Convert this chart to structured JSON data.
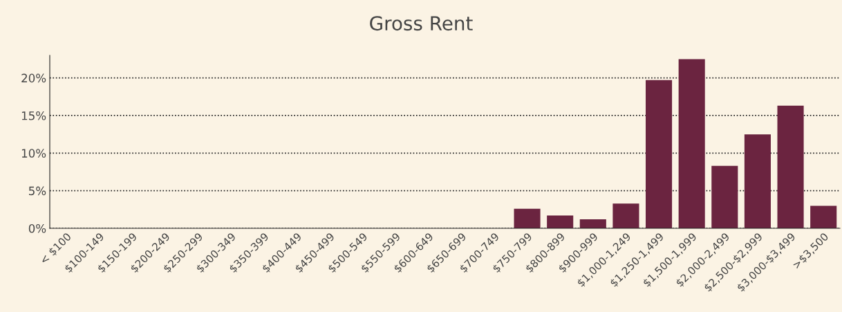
{
  "chart_data": {
    "type": "bar",
    "title": "Gross Rent",
    "categories": [
      "< $100",
      "$100-149",
      "$150-199",
      "$200-249",
      "$250-299",
      "$300-349",
      "$350-399",
      "$400-449",
      "$450-499",
      "$500-549",
      "$550-599",
      "$600-649",
      "$650-699",
      "$700-749",
      "$750-799",
      "$800-899",
      "$900-999",
      "$1,000-1,249",
      "$1,250-1,499",
      "$1,500-1,999",
      "$2,000-2,499",
      "$2,500-$2,999",
      "$3,000-$3,499",
      ">$3,500"
    ],
    "values": [
      0,
      0,
      0,
      0,
      0,
      0,
      0,
      0,
      0,
      0,
      0,
      0,
      0,
      0,
      2.6,
      1.7,
      1.2,
      3.3,
      19.7,
      22.5,
      8.3,
      12.5,
      16.3,
      3.0
    ],
    "color": "#6b2440",
    "ylim": [
      0,
      23
    ],
    "yticks": [
      {
        "value": 0,
        "label": "0%"
      },
      {
        "value": 5,
        "label": "5%"
      },
      {
        "value": 10,
        "label": "10%"
      },
      {
        "value": 15,
        "label": "15%"
      },
      {
        "value": 20,
        "label": "20%"
      }
    ],
    "grid": "y",
    "line_style": "dotted"
  }
}
